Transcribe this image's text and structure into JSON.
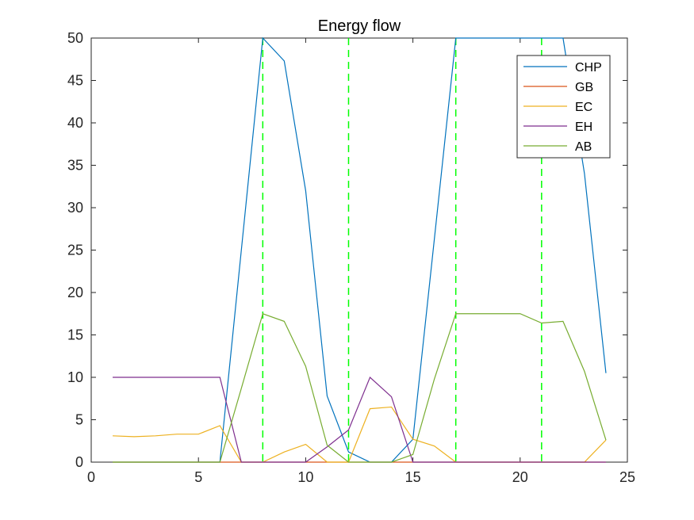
{
  "chart_data": {
    "type": "line",
    "title": "Energy flow",
    "xlim": [
      0,
      25
    ],
    "ylim": [
      0,
      50
    ],
    "xticks": [
      0,
      5,
      10,
      15,
      20,
      25
    ],
    "yticks": [
      0,
      5,
      10,
      15,
      20,
      25,
      30,
      35,
      40,
      45,
      50
    ],
    "x": [
      1,
      2,
      3,
      4,
      5,
      6,
      7,
      8,
      9,
      10,
      11,
      12,
      13,
      14,
      15,
      16,
      17,
      18,
      19,
      20,
      21,
      22,
      23,
      24
    ],
    "series": [
      {
        "name": "CHP",
        "color": "#0072BD",
        "values": [
          0,
          0,
          0,
          0,
          0,
          0,
          25,
          50,
          47.3,
          32,
          7.8,
          1.2,
          0,
          0,
          2.7,
          26.3,
          50,
          50,
          50,
          50,
          50,
          50,
          34,
          10.5
        ]
      },
      {
        "name": "GB",
        "color": "#D95319",
        "values": [
          0,
          0,
          0,
          0,
          0,
          0,
          0,
          0,
          0,
          0,
          0,
          0,
          0,
          0,
          0,
          0,
          0,
          0,
          0,
          0,
          0,
          0,
          0,
          0
        ]
      },
      {
        "name": "EC",
        "color": "#EDB120",
        "values": [
          3.1,
          3.0,
          3.1,
          3.3,
          3.3,
          4.3,
          0,
          0,
          1.2,
          2.1,
          0,
          0,
          6.3,
          6.5,
          2.7,
          1.9,
          0,
          0,
          0,
          0,
          0,
          0,
          0,
          2.6
        ]
      },
      {
        "name": "EH",
        "color": "#7E2F8E",
        "values": [
          10,
          10,
          10,
          10,
          10,
          10,
          0,
          0,
          0,
          0,
          1.8,
          3.8,
          10,
          7.7,
          0,
          0,
          0,
          0,
          0,
          0,
          0,
          0,
          0,
          0
        ]
      },
      {
        "name": "AB",
        "color": "#77AC30",
        "values": [
          0,
          0,
          0,
          0,
          0,
          0,
          8.7,
          17.5,
          16.6,
          11.3,
          2.0,
          0,
          0,
          0,
          0.9,
          9.8,
          17.5,
          17.5,
          17.5,
          17.5,
          16.4,
          16.6,
          10.7,
          2.6
        ]
      }
    ],
    "vertical_lines": {
      "color": "#00FF00",
      "style": "dashed",
      "x": [
        8,
        12,
        17,
        21
      ]
    },
    "legend_position": "top-right"
  }
}
